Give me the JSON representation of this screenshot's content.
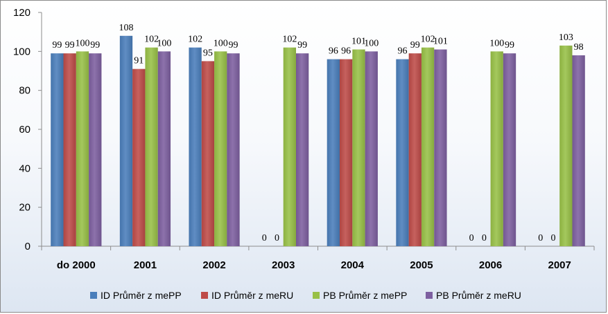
{
  "chart_data": {
    "type": "bar",
    "title": "",
    "xlabel": "",
    "ylabel": "",
    "ylim": [
      0,
      120
    ],
    "yticks": [
      0,
      20,
      40,
      60,
      80,
      100,
      120
    ],
    "grid": false,
    "legend_position": "bottom",
    "categories": [
      "do 2000",
      "2001",
      "2002",
      "2003",
      "2004",
      "2005",
      "2006",
      "2007"
    ],
    "series": [
      {
        "name": "ID Průměr z mePP",
        "color": "#4a7ebb",
        "values": [
          99,
          108,
          102,
          0,
          96,
          96,
          0,
          0
        ],
        "labels": [
          "99",
          "108",
          "102",
          "0",
          "96",
          "96",
          "0",
          "0"
        ]
      },
      {
        "name": "ID Průměr z meRU",
        "color": "#be4b48",
        "values": [
          99,
          91,
          95,
          0,
          96,
          99,
          0,
          0
        ],
        "labels": [
          "99",
          "91",
          "95",
          "0",
          "96",
          "99",
          "0",
          "0"
        ]
      },
      {
        "name": "PB Průměr z mePP",
        "color": "#98c047",
        "values": [
          100,
          102,
          100,
          102,
          101,
          102,
          100,
          103
        ],
        "labels": [
          "100",
          "102",
          "100",
          "102",
          "101",
          "102",
          "100",
          "103"
        ]
      },
      {
        "name": "PB Průměr z meRU",
        "color": "#7d5fa0",
        "values": [
          99,
          100,
          99,
          99,
          100,
          101,
          99,
          98
        ],
        "labels": [
          "99",
          "100",
          "99",
          "99",
          "100",
          "101",
          "99",
          "98"
        ]
      }
    ]
  }
}
